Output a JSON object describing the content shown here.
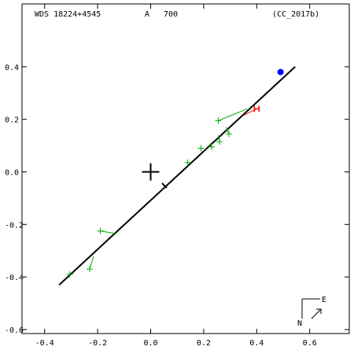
{
  "header": {
    "wds": "WDS 18224+4545",
    "pair": "A",
    "number": "700",
    "ref": "(CC_2017b)"
  },
  "compass": {
    "east": "E",
    "north": "N"
  },
  "chart_data": {
    "type": "scatter",
    "xlim": [
      -0.5,
      0.75
    ],
    "ylim": [
      -0.65,
      0.62
    ],
    "y_inverted": true,
    "x_ticks": [
      -0.4,
      -0.2,
      0.0,
      0.2,
      0.4,
      0.6
    ],
    "y_ticks": [
      -0.6,
      -0.4,
      -0.2,
      0.0,
      0.2,
      0.4
    ],
    "x_tick_labels": [
      "-0.4",
      "-0.2",
      "0.0",
      "0.2",
      "0.4",
      "0.6"
    ],
    "y_tick_labels": [
      "-0.6",
      "-0.4",
      "-0.2",
      "0.0",
      "0.2",
      "0.4"
    ],
    "primary": [
      0,
      0
    ],
    "orbit_line": [
      [
        -0.345,
        -0.43
      ],
      [
        0.545,
        0.4
      ]
    ],
    "periastron_tick": [
      0.052,
      -0.052
    ],
    "latest_point": [
      0.49,
      0.38
    ],
    "observations": [
      {
        "obs": [
          -0.305,
          -0.39
        ],
        "model": [
          -0.305,
          -0.39
        ]
      },
      {
        "obs": [
          -0.23,
          -0.37
        ],
        "model": [
          -0.215,
          -0.32
        ]
      },
      {
        "obs": [
          -0.19,
          -0.225
        ],
        "model": [
          -0.13,
          -0.235
        ]
      },
      {
        "obs": [
          0.14,
          0.035
        ],
        "model": [
          0.14,
          0.035
        ]
      },
      {
        "obs": [
          0.19,
          0.09
        ],
        "model": [
          0.19,
          0.085
        ]
      },
      {
        "obs": [
          0.23,
          0.095
        ],
        "model": [
          0.225,
          0.11
        ]
      },
      {
        "obs": [
          0.26,
          0.115
        ],
        "model": [
          0.255,
          0.14
        ]
      },
      {
        "obs": [
          0.295,
          0.145
        ],
        "model": [
          0.285,
          0.17
        ]
      },
      {
        "obs": [
          0.255,
          0.195
        ],
        "model": [
          0.365,
          0.24
        ]
      }
    ],
    "micrometric": {
      "obs": [
        0.4,
        0.24
      ],
      "model": [
        0.35,
        0.215
      ]
    },
    "colors": {
      "orbit": "#000000",
      "observation": "#00aa00",
      "micrometric": "#ff0000",
      "latest": "#0000ff"
    }
  }
}
